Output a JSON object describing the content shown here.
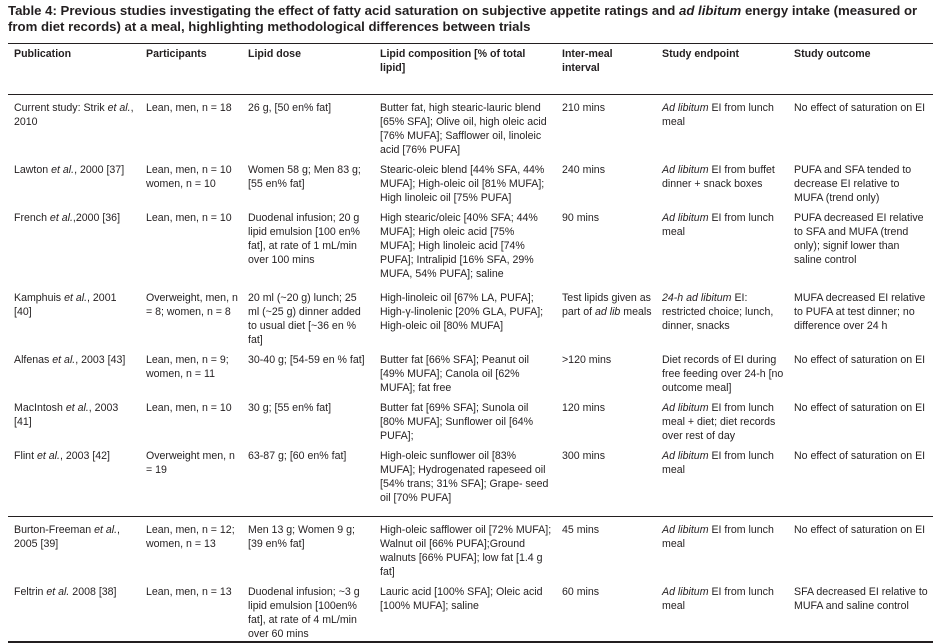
{
  "title": [
    {
      "t": "Table 4: Previous studies investigating the effect of fatty acid saturation on subjective appetite ratings and "
    },
    {
      "t": "ad libitum",
      "i": true
    },
    {
      "t": " energy intake (measured or from diet records) at a meal, highlighting methodological differences between trials"
    }
  ],
  "headers": [
    "Publication",
    "Participants",
    "Lipid dose",
    "Lipid composition [% of total lipid]",
    "Inter-meal interval",
    "Study endpoint",
    "Study outcome"
  ],
  "rows": [
    {
      "cells": [
        [
          {
            "t": "Current study: Strik "
          },
          {
            "t": "et al.",
            "i": true
          },
          {
            "t": ", 2010"
          }
        ],
        [
          {
            "t": "Lean, men, n = 18"
          }
        ],
        [
          {
            "t": "26 g, [50 en% fat]"
          }
        ],
        [
          {
            "t": "Butter fat, high stearic-lauric blend [65% SFA]; Olive oil, high oleic acid [76% MUFA]; Safflower oil, linoleic acid [76% PUFA]"
          }
        ],
        [
          {
            "t": "210 mins"
          }
        ],
        [
          {
            "t": "Ad libitum",
            "i": true
          },
          {
            "t": " EI from lunch meal"
          }
        ],
        [
          {
            "t": "No effect of saturation on EI"
          }
        ]
      ]
    },
    {
      "cells": [
        [
          {
            "t": "Lawton "
          },
          {
            "t": "et al.",
            "i": true
          },
          {
            "t": ", 2000 [37]"
          }
        ],
        [
          {
            "t": "Lean, men, n = 10 women, n = 10"
          }
        ],
        [
          {
            "t": "Women 58 g; Men 83 g; [55 en% fat]"
          }
        ],
        [
          {
            "t": "Stearic-oleic blend [44% SFA, 44% MUFA]; High-oleic oil [81% MUFA]; High linoleic oil [75% PUFA]"
          }
        ],
        [
          {
            "t": "240 mins"
          }
        ],
        [
          {
            "t": "Ad libitum",
            "i": true
          },
          {
            "t": " EI from buffet dinner + snack boxes"
          }
        ],
        [
          {
            "t": "PUFA and SFA tended to decrease EI relative to MUFA (trend only)"
          }
        ]
      ]
    },
    {
      "cells": [
        [
          {
            "t": "French "
          },
          {
            "t": "et al.",
            "i": true
          },
          {
            "t": ",2000 [36]"
          }
        ],
        [
          {
            "t": "Lean, men, n = 10"
          }
        ],
        [
          {
            "t": "Duodenal infusion; 20 g lipid emulsion [100 en% fat], at rate of 1 mL/min over 100 mins"
          }
        ],
        [
          {
            "t": "High stearic/oleic [40% SFA; 44% MUFA]; High oleic acid [75% MUFA]; High linoleic acid [74% PUFA]; Intralipid [16% SFA, 29% MUFA, 54% PUFA]; saline"
          }
        ],
        [
          {
            "t": "90 mins"
          }
        ],
        [
          {
            "t": "Ad libitum",
            "i": true
          },
          {
            "t": " EI from lunch meal"
          }
        ],
        [
          {
            "t": "PUFA decreased EI relative to SFA and MUFA (trend only); signif lower than saline control"
          }
        ]
      ]
    },
    {
      "cells": [
        [
          {
            "t": "Kamphuis "
          },
          {
            "t": "et al.",
            "i": true
          },
          {
            "t": ", 2001 [40]"
          }
        ],
        [
          {
            "t": "Overweight, men, n = 8; women, n = 8"
          }
        ],
        [
          {
            "t": "20 ml (~20 g) lunch; 25 ml (~25 g) dinner added to usual diet [~36 en % fat]"
          }
        ],
        [
          {
            "t": "High-linoleic oil [67% LA, PUFA]; High-γ-linolenic [20% GLA, PUFA]; High-oleic oil [80% MUFA]"
          }
        ],
        [
          {
            "t": "Test lipids given as part of "
          },
          {
            "t": "ad lib",
            "i": true
          },
          {
            "t": " meals"
          }
        ],
        [
          {
            "t": "24-h ad libitum",
            "i": true
          },
          {
            "t": " EI: restricted choice; lunch, dinner, snacks"
          }
        ],
        [
          {
            "t": "MUFA decreased EI relative to PUFA at test dinner; no difference over 24 h"
          }
        ]
      ]
    },
    {
      "cells": [
        [
          {
            "t": "Alfenas "
          },
          {
            "t": "et al.",
            "i": true
          },
          {
            "t": ", 2003 [43]"
          }
        ],
        [
          {
            "t": "Lean, men, n = 9; women, n = 11"
          }
        ],
        [
          {
            "t": "30-40 g; [54-59 en % fat]"
          }
        ],
        [
          {
            "t": "Butter fat [66% SFA]; Peanut oil [49% MUFA]; Canola oil [62% MUFA]; fat free"
          }
        ],
        [
          {
            "t": ">120 mins"
          }
        ],
        [
          {
            "t": "Diet records of EI during free feeding over 24-h [no outcome meal]"
          }
        ],
        [
          {
            "t": "No effect of saturation on EI"
          }
        ]
      ]
    },
    {
      "cells": [
        [
          {
            "t": "MacIntosh "
          },
          {
            "t": "et al.",
            "i": true
          },
          {
            "t": ", 2003 [41]"
          }
        ],
        [
          {
            "t": "Lean, men, n = 10"
          }
        ],
        [
          {
            "t": "30 g; [55 en% fat]"
          }
        ],
        [
          {
            "t": "Butter fat [69% SFA]; Sunola oil [80% MUFA]; Sunflower oil [64% PUFA];"
          }
        ],
        [
          {
            "t": "120 mins"
          }
        ],
        [
          {
            "t": "Ad libitum",
            "i": true
          },
          {
            "t": " EI from lunch meal + diet; diet records over rest of day"
          }
        ],
        [
          {
            "t": "No effect of saturation on EI"
          }
        ]
      ]
    },
    {
      "cells": [
        [
          {
            "t": "Flint "
          },
          {
            "t": "et al.",
            "i": true
          },
          {
            "t": ", 2003 [42]"
          }
        ],
        [
          {
            "t": "Overweight men, n = 19"
          }
        ],
        [
          {
            "t": "63-87 g; [60 en% fat]"
          }
        ],
        [
          {
            "t": "High-oleic sunflower oil [83% MUFA]; Hydrogenated rapeseed oil [54% trans; 31% SFA]; Grape- seed oil [70% PUFA]"
          }
        ],
        [
          {
            "t": "300 mins"
          }
        ],
        [
          {
            "t": "Ad libitum",
            "i": true
          },
          {
            "t": " EI from lunch meal"
          }
        ],
        [
          {
            "t": "No effect of saturation on EI"
          }
        ]
      ]
    },
    {
      "sep": true,
      "cells": [
        [
          {
            "t": "Burton-Freeman "
          },
          {
            "t": "et al.",
            "i": true
          },
          {
            "t": ", 2005 [39]"
          }
        ],
        [
          {
            "t": "Lean, men, n = 12; women, n = 13"
          }
        ],
        [
          {
            "t": "Men 13 g; Women 9 g; [39 en% fat]"
          }
        ],
        [
          {
            "t": "High-oleic safflower oil [72% MUFA]; Walnut oil [66% PUFA];Ground walnuts [66% PUFA]; low fat [1.4 g fat]"
          }
        ],
        [
          {
            "t": "45 mins"
          }
        ],
        [
          {
            "t": "Ad libitum",
            "i": true
          },
          {
            "t": " EI from lunch meal"
          }
        ],
        [
          {
            "t": "No effect of saturation on EI"
          }
        ]
      ]
    },
    {
      "cells": [
        [
          {
            "t": "Feltrin "
          },
          {
            "t": "et al.",
            "i": true
          },
          {
            "t": " 2008 [38]"
          }
        ],
        [
          {
            "t": "Lean, men, n = 13"
          }
        ],
        [
          {
            "t": "Duodenal infusion; ~3 g lipid emulsion [100en% fat], at rate of 4 mL/min over 60 mins"
          }
        ],
        [
          {
            "t": "Lauric acid [100% SFA]; Oleic acid [100% MUFA]; saline"
          }
        ],
        [
          {
            "t": "60 mins"
          }
        ],
        [
          {
            "t": "Ad libitum",
            "i": true
          },
          {
            "t": " EI from lunch meal"
          }
        ],
        [
          {
            "t": "SFA decreased EI relative to MUFA and saline control"
          }
        ]
      ]
    }
  ]
}
